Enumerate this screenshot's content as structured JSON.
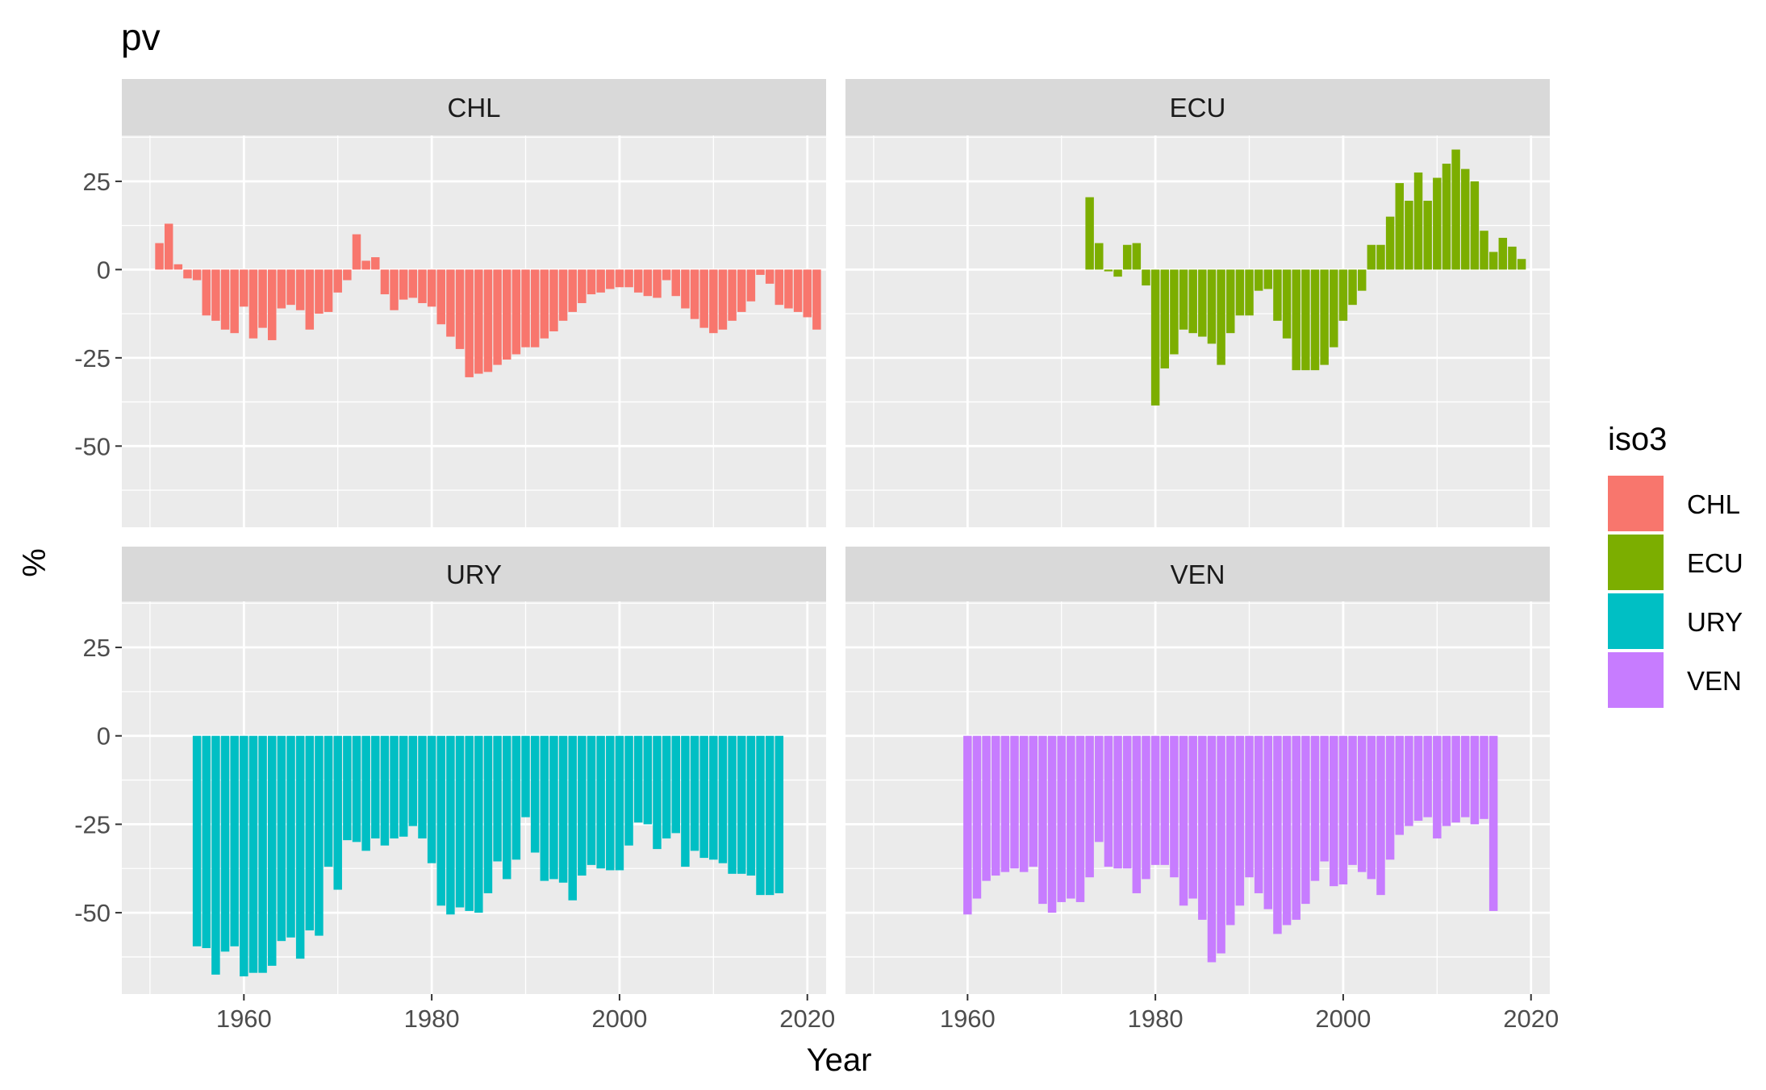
{
  "chart_data": {
    "type": "bar",
    "title": "pv",
    "xlabel": "Year",
    "ylabel": "%",
    "xlim": [
      1947,
      2022
    ],
    "ylim": [
      -73,
      38
    ],
    "x_ticks": [
      "1960",
      "1980",
      "2000",
      "2020"
    ],
    "y_ticks": [
      "25",
      "0",
      "-25",
      "-50"
    ],
    "grid": true,
    "legend": {
      "title": "iso3",
      "position": "right",
      "entries": [
        {
          "name": "CHL",
          "color": "#F8766D"
        },
        {
          "name": "ECU",
          "color": "#7CAE00"
        },
        {
          "name": "URY",
          "color": "#00BFC4"
        },
        {
          "name": "VEN",
          "color": "#C77CFF"
        }
      ]
    },
    "panels": [
      {
        "name": "CHL",
        "color": "#F8766D",
        "start_year": 1951,
        "values": [
          7.5,
          13,
          1.5,
          -2.5,
          -3,
          -13,
          -14.5,
          -17,
          -18,
          -10.5,
          -19.5,
          -16.5,
          -20,
          -11,
          -10,
          -11.5,
          -17,
          -12.5,
          -12,
          -6.5,
          -3,
          10,
          2.5,
          3.5,
          -7,
          -11.5,
          -8.5,
          -8,
          -9.5,
          -10.5,
          -15.5,
          -19,
          -22.5,
          -30.5,
          -29.5,
          -29,
          -27,
          -25.5,
          -24,
          -22,
          -22,
          -19.5,
          -17.5,
          -14.5,
          -12,
          -9.5,
          -7,
          -6.5,
          -5.5,
          -5,
          -5,
          -6.5,
          -7.5,
          -8,
          -3,
          -7.5,
          -11,
          -14,
          -16.5,
          -18,
          -17,
          -14.5,
          -12,
          -9,
          -1.5,
          -4,
          -10,
          -11,
          -12,
          -13.5,
          -17
        ]
      },
      {
        "name": "ECU",
        "color": "#7CAE00",
        "start_year": 1973,
        "values": [
          20.5,
          7.5,
          -0.5,
          -2,
          7,
          7.5,
          -4.5,
          -38.5,
          -28,
          -24,
          -17,
          -18,
          -19,
          -21,
          -27,
          -18,
          -13,
          -13,
          -6,
          -5.5,
          -14.5,
          -19.5,
          -28.5,
          -28.5,
          -28.5,
          -27,
          -22,
          -14.5,
          -10,
          -6,
          7,
          7,
          15,
          24.5,
          19.5,
          27.5,
          19.5,
          26,
          30,
          34,
          28.5,
          25,
          11,
          5,
          9,
          6.5,
          3
        ]
      },
      {
        "name": "URY",
        "color": "#00BFC4",
        "start_year": 1955,
        "values": [
          -59.5,
          -60,
          -67.5,
          -61,
          -59.5,
          -68,
          -67,
          -67,
          -65,
          -58,
          -57,
          -63,
          -55,
          -56.5,
          -37,
          -43.5,
          -29.5,
          -30,
          -32.5,
          -29,
          -31,
          -29,
          -28.5,
          -25.5,
          -29,
          -36,
          -48,
          -50.5,
          -48.5,
          -49.5,
          -50,
          -44.5,
          -35.5,
          -40.5,
          -35,
          -23,
          -33,
          -41,
          -40.5,
          -41.5,
          -46.5,
          -39.5,
          -36.5,
          -37.5,
          -38,
          -38,
          -31,
          -24.5,
          -25,
          -32,
          -29,
          -27.5,
          -37,
          -32.5,
          -34.5,
          -35,
          -36,
          -39,
          -39,
          -39.5,
          -45,
          -45,
          -44.5
        ]
      },
      {
        "name": "VEN",
        "color": "#C77CFF",
        "start_year": 1960,
        "values": [
          -50.5,
          -46,
          -41,
          -39.5,
          -38.5,
          -37.5,
          -38.5,
          -37,
          -47.5,
          -50,
          -47,
          -46,
          -47,
          -40,
          -30,
          -37,
          -37.5,
          -37.5,
          -44.5,
          -40.5,
          -36.5,
          -36.5,
          -40,
          -48,
          -46,
          -52,
          -64,
          -61.5,
          -53.5,
          -48,
          -40,
          -44.5,
          -49,
          -56,
          -53.5,
          -52,
          -47.5,
          -41,
          -35.5,
          -42.5,
          -42,
          -36.5,
          -38.5,
          -40.5,
          -45,
          -35,
          -28,
          -25.5,
          -24,
          -23,
          -29,
          -25.5,
          -24.5,
          -23,
          -25,
          -23.5,
          -49.5
        ]
      }
    ]
  }
}
